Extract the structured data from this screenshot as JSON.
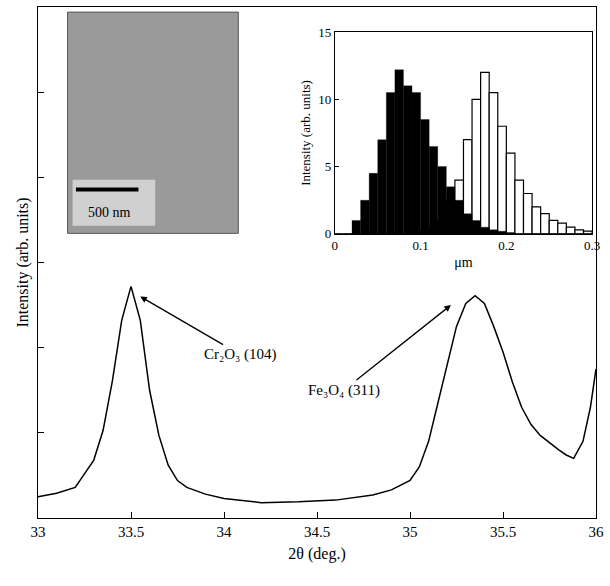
{
  "chart_data": [
    {
      "type": "line",
      "x_label": "2θ (deg.)",
      "y_label": "Intensity (arb. units)",
      "x": [
        33.0,
        33.1,
        33.2,
        33.3,
        33.35,
        33.4,
        33.45,
        33.5,
        33.55,
        33.6,
        33.65,
        33.7,
        33.75,
        33.8,
        33.9,
        34.0,
        34.2,
        34.4,
        34.6,
        34.8,
        34.9,
        35.0,
        35.05,
        35.1,
        35.15,
        35.2,
        35.25,
        35.3,
        35.35,
        35.4,
        35.45,
        35.5,
        35.55,
        35.6,
        35.65,
        35.7,
        35.75,
        35.8,
        35.84,
        35.88,
        35.93,
        35.97,
        36.0
      ],
      "values": [
        0.25,
        0.29,
        0.36,
        0.68,
        1.03,
        1.61,
        2.32,
        2.72,
        2.32,
        1.5,
        0.97,
        0.62,
        0.44,
        0.36,
        0.28,
        0.23,
        0.18,
        0.19,
        0.21,
        0.27,
        0.33,
        0.44,
        0.6,
        0.9,
        1.35,
        1.8,
        2.25,
        2.52,
        2.61,
        2.52,
        2.25,
        1.95,
        1.6,
        1.3,
        1.1,
        0.97,
        0.88,
        0.8,
        0.74,
        0.7,
        0.9,
        1.3,
        1.75
      ],
      "color": "#000000",
      "xlim": [
        33,
        36
      ],
      "xticks": [
        33,
        33.5,
        34,
        34.5,
        35,
        35.5,
        36
      ],
      "ylim": [
        0,
        6
      ],
      "yticks": [
        1,
        2,
        3,
        4,
        5
      ],
      "tick_labels": "x",
      "annotations": [
        {
          "text": "Cr₂O₃ (104)",
          "x": 33.55,
          "y": 2.6
        },
        {
          "text": "Fe₃O₄ (311)",
          "x": 35.22,
          "y": 2.5
        }
      ]
    },
    {
      "type": "histogram",
      "x_label": "μm",
      "y_label": "Intensity (arb. units)",
      "bins": [
        0,
        0.01,
        0.02,
        0.03,
        0.04,
        0.05,
        0.06,
        0.07,
        0.08,
        0.09,
        0.1,
        0.11,
        0.12,
        0.13,
        0.14,
        0.15,
        0.16,
        0.17,
        0.18,
        0.19,
        0.2,
        0.21,
        0.22,
        0.23,
        0.24,
        0.25,
        0.26,
        0.27,
        0.28,
        0.29,
        0.3
      ],
      "series": [
        {
          "color": "#ffffff",
          "values": [
            0,
            0,
            0,
            0,
            0,
            0,
            0,
            0,
            0,
            0,
            0.3,
            0.5,
            1.0,
            2.5,
            4.0,
            7.0,
            10.0,
            12.0,
            10.5,
            8.0,
            6.0,
            4.0,
            3.0,
            2.0,
            1.5,
            1.0,
            0.8,
            0.5,
            0.3,
            0.2
          ]
        },
        {
          "color": "#000000",
          "values": [
            0,
            0,
            1.0,
            2.5,
            4.5,
            7.0,
            10.5,
            12.2,
            11.0,
            10.5,
            8.5,
            6.5,
            5.0,
            3.5,
            2.5,
            1.5,
            1.0,
            0.5,
            0.3,
            0.2,
            0.1,
            0,
            0,
            0,
            0,
            0,
            0,
            0,
            0,
            0
          ]
        }
      ],
      "xlim": [
        0,
        0.3
      ],
      "xticks": [
        0,
        0.1,
        0.2,
        0.3
      ],
      "ylim": [
        0,
        15
      ],
      "yticks": [
        0,
        5,
        10,
        15
      ]
    }
  ],
  "image": {
    "scale_bar": "500 nm"
  }
}
